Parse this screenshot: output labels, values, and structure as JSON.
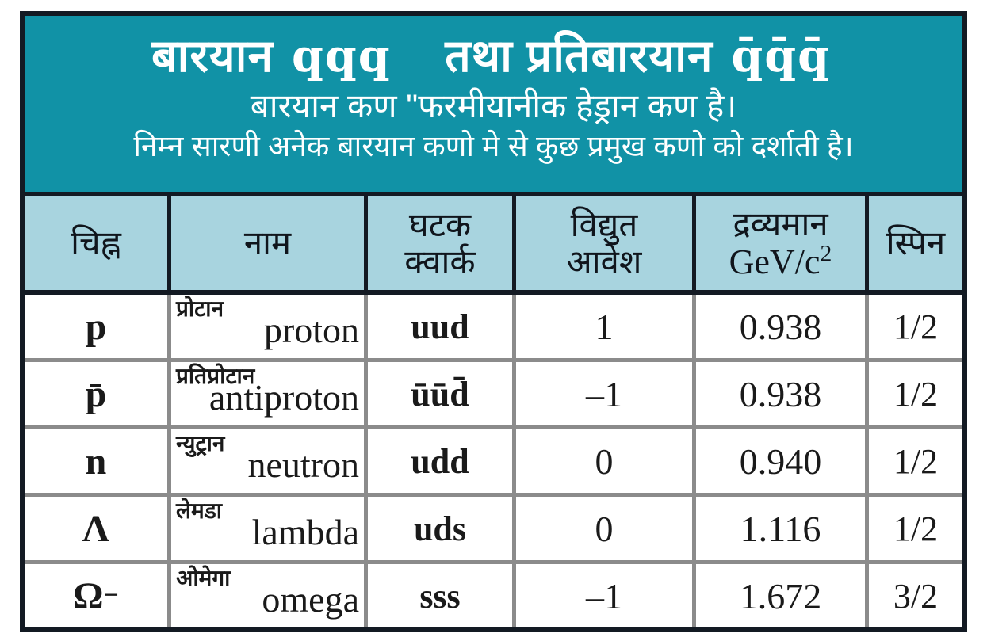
{
  "banner": {
    "title": {
      "part1": "बारयान",
      "qqq": "qqq",
      "part2": "तथा प्रतिबारयान",
      "qbar": "q̄q̄q̄"
    },
    "subtitle1": "बारयान कण \"फरमीयानीक हेड्रान कण है।",
    "subtitle2": "निम्न सारणी अनेक बारयान कणो मे से कुछ प्रमुख कणो को दर्शाती है।"
  },
  "table": {
    "headers": {
      "symbol": "चिह्न",
      "name": "नाम",
      "quarks_line1": "घटक",
      "quarks_line2": "क्वार्क",
      "charge_line1": "विद्युत",
      "charge_line2": "आवेश",
      "mass_line1": "द्रव्यमान",
      "mass_unit_base": "GeV/c",
      "mass_unit_exp": "2",
      "spin": "स्पिन"
    },
    "rows": [
      {
        "symbol": "p",
        "symbol_sup": "",
        "name_hi": "प्रोटान",
        "name_en": "proton",
        "quarks": "uud",
        "charge": "1",
        "mass": "0.938",
        "spin": "1/2"
      },
      {
        "symbol": "p̄",
        "symbol_sup": "",
        "name_hi": "प्रतिप्रोटान",
        "name_en": "antiproton",
        "quarks": "ūūd̄",
        "charge": "–1",
        "mass": "0.938",
        "spin": "1/2"
      },
      {
        "symbol": "n",
        "symbol_sup": "",
        "name_hi": "न्युट्रान",
        "name_en": "neutron",
        "quarks": "udd",
        "charge": "0",
        "mass": "0.940",
        "spin": "1/2"
      },
      {
        "symbol": "Λ",
        "symbol_sup": "",
        "name_hi": "लेमडा",
        "name_en": "lambda",
        "quarks": "uds",
        "charge": "0",
        "mass": "1.116",
        "spin": "1/2"
      },
      {
        "symbol": "Ω",
        "symbol_sup": "−",
        "name_hi": "ओमेगा",
        "name_en": "omega",
        "quarks": "sss",
        "charge": "–1",
        "mass": "1.672",
        "spin": "3/2"
      }
    ]
  },
  "colors": {
    "banner_teal": "#1192a6",
    "header_blue": "#a8d4df",
    "grid_gray": "#8b8b8b",
    "frame_black": "#131a23"
  }
}
